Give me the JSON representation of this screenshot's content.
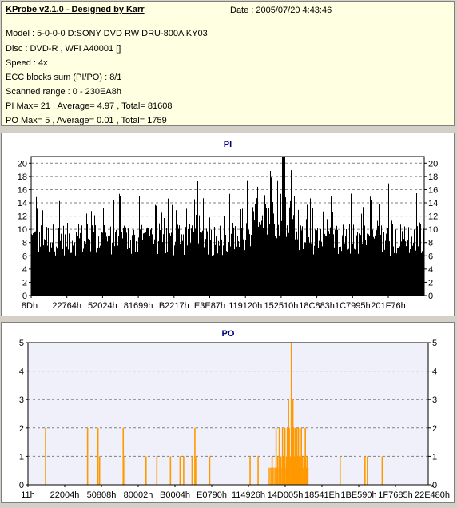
{
  "header": {
    "title": "KProbe v2.1.0 - Designed by Karr",
    "date": "Date : 2005/07/20 4:43:46"
  },
  "info_lines": [
    "Model : 5-0-0-0 D:SONY    DVD RW DRU-800A  KY03",
    "Disc : DVD-R , WFI A40001   []",
    "Speed : 4x",
    "ECC blocks sum (PI/PO) : 8/1",
    "Scanned range : 0 - 230EA8h",
    "PI Max= 21 , Average= 4.97 , Total= 81608",
    "PO Max= 5 , Average= 0.01 , Total= 1759"
  ],
  "colors": {
    "pi_bars": "#000000",
    "po_bars": "#ff9900",
    "grid": "#808080",
    "chart_title": "#000080",
    "info_bg": "#ffffe1"
  },
  "chart_data": [
    {
      "type": "bar",
      "title": "PI",
      "ylim": [
        0,
        21
      ],
      "yticks": [
        0,
        2,
        4,
        6,
        8,
        10,
        12,
        14,
        16,
        18,
        20
      ],
      "x_tick_labels": [
        "8Dh",
        "22764h",
        "52024h",
        "81699h",
        "B2217h",
        "E3E87h",
        "119120h",
        "152510h",
        "18C883h",
        "1C7995h",
        "201F76h"
      ],
      "grid": true,
      "seed": 12345,
      "baseline_range": [
        6,
        11
      ],
      "max": 21,
      "average": 4.97,
      "total": 81608
    },
    {
      "type": "bar",
      "title": "PO",
      "ylim": [
        0,
        5
      ],
      "yticks": [
        0,
        1,
        2,
        3,
        4,
        5
      ],
      "x_tick_labels": [
        "11h",
        "22004h",
        "50808h",
        "80002h",
        "B0004h",
        "E0790h",
        "114926h",
        "14D005h",
        "18541Eh",
        "1BE590h",
        "1F7685h",
        "22E480h"
      ],
      "grid": true,
      "spikes": [
        [
          0.044,
          2
        ],
        [
          0.149,
          2
        ],
        [
          0.175,
          2
        ],
        [
          0.179,
          1
        ],
        [
          0.238,
          2
        ],
        [
          0.242,
          1
        ],
        [
          0.295,
          1
        ],
        [
          0.322,
          1
        ],
        [
          0.356,
          1
        ],
        [
          0.38,
          1
        ],
        [
          0.389,
          1
        ],
        [
          0.41,
          1
        ],
        [
          0.417,
          2
        ],
        [
          0.419,
          1
        ],
        [
          0.454,
          1
        ],
        [
          0.555,
          1
        ],
        [
          0.575,
          1
        ],
        [
          0.61,
          1
        ],
        [
          0.62,
          2
        ],
        [
          0.624,
          1
        ],
        [
          0.628,
          2
        ],
        [
          0.632,
          1
        ],
        [
          0.636,
          2
        ],
        [
          0.638,
          1
        ],
        [
          0.642,
          2
        ],
        [
          0.646,
          1
        ],
        [
          0.648,
          2
        ],
        [
          0.651,
          3
        ],
        [
          0.653,
          2
        ],
        [
          0.655,
          1
        ],
        [
          0.658,
          5
        ],
        [
          0.66,
          2
        ],
        [
          0.662,
          3
        ],
        [
          0.664,
          2
        ],
        [
          0.666,
          1
        ],
        [
          0.668,
          2
        ],
        [
          0.67,
          1
        ],
        [
          0.672,
          2
        ],
        [
          0.674,
          1
        ],
        [
          0.676,
          2
        ],
        [
          0.678,
          1
        ],
        [
          0.68,
          1
        ],
        [
          0.683,
          2
        ],
        [
          0.686,
          1
        ],
        [
          0.69,
          1
        ],
        [
          0.693,
          2
        ],
        [
          0.697,
          1
        ],
        [
          0.78,
          1
        ],
        [
          0.842,
          1
        ],
        [
          0.848,
          1
        ],
        [
          0.885,
          1
        ]
      ],
      "max": 5,
      "average": 0.01,
      "total": 1759
    }
  ]
}
